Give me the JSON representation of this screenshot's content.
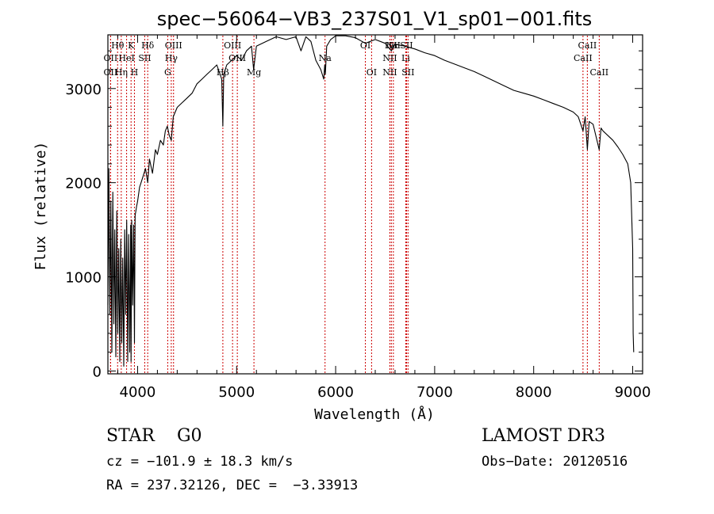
{
  "chart_data": {
    "type": "line",
    "title": "spec−56064−VB3_237S01_V1_sp01−001.fits",
    "xlabel": "Wavelength (Å)",
    "ylabel": "Flux (relative)",
    "xlim": [
      3700,
      9100
    ],
    "ylim": [
      -30,
      3570
    ],
    "xticks": [
      4000,
      5000,
      6000,
      7000,
      8000,
      9000
    ],
    "yticks": [
      0,
      1000,
      2000,
      3000
    ],
    "grid": false,
    "series": [
      {
        "name": "flux",
        "x": [
          3700,
          3710,
          3720,
          3730,
          3740,
          3750,
          3760,
          3770,
          3780,
          3790,
          3800,
          3810,
          3820,
          3830,
          3840,
          3850,
          3860,
          3870,
          3880,
          3890,
          3900,
          3910,
          3920,
          3930,
          3934,
          3940,
          3950,
          3960,
          3968,
          3975,
          3990,
          4000,
          4020,
          4050,
          4080,
          4102,
          4120,
          4150,
          4180,
          4200,
          4230,
          4260,
          4280,
          4300,
          4320,
          4340,
          4360,
          4400,
          4450,
          4500,
          4550,
          4600,
          4650,
          4700,
          4750,
          4800,
          4850,
          4861,
          4870,
          4900,
          4950,
          5000,
          5050,
          5100,
          5150,
          5172,
          5183,
          5200,
          5300,
          5400,
          5500,
          5600,
          5650,
          5700,
          5750,
          5800,
          5850,
          5880,
          5890,
          5896,
          5910,
          5950,
          6000,
          6100,
          6200,
          6300,
          6400,
          6500,
          6563,
          6600,
          6700,
          6800,
          6900,
          7000,
          7100,
          7200,
          7300,
          7400,
          7500,
          7600,
          7700,
          7800,
          7900,
          8000,
          8100,
          8200,
          8300,
          8400,
          8450,
          8498,
          8520,
          8542,
          8560,
          8600,
          8662,
          8680,
          8700,
          8750,
          8800,
          8850,
          8900,
          8950,
          8980,
          9000,
          9005,
          9010
        ],
        "values": [
          700,
          2150,
          600,
          1800,
          200,
          1900,
          500,
          1500,
          150,
          1700,
          400,
          1300,
          100,
          1400,
          300,
          1200,
          50,
          1500,
          600,
          1600,
          100,
          1450,
          200,
          1550,
          100,
          1600,
          700,
          1550,
          300,
          1650,
          1750,
          1800,
          1950,
          2050,
          2150,
          2000,
          2250,
          2100,
          2350,
          2300,
          2450,
          2400,
          2550,
          2600,
          2500,
          2450,
          2700,
          2800,
          2850,
          2900,
          2950,
          3050,
          3100,
          3150,
          3200,
          3250,
          3100,
          2600,
          3150,
          3250,
          3300,
          3350,
          3300,
          3400,
          3450,
          3200,
          3300,
          3450,
          3500,
          3550,
          3520,
          3550,
          3400,
          3550,
          3500,
          3300,
          3200,
          3100,
          3250,
          3150,
          3450,
          3520,
          3560,
          3560,
          3540,
          3480,
          3520,
          3480,
          3400,
          3470,
          3450,
          3420,
          3380,
          3350,
          3300,
          3260,
          3220,
          3180,
          3130,
          3080,
          3030,
          2980,
          2950,
          2920,
          2880,
          2840,
          2800,
          2750,
          2700,
          2550,
          2700,
          2350,
          2650,
          2620,
          2350,
          2580,
          2550,
          2500,
          2450,
          2380,
          2300,
          2200,
          2000,
          1300,
          400,
          200
        ]
      }
    ],
    "lines": [
      {
        "label": "Hθ",
        "x": 3798,
        "row": 1
      },
      {
        "label": "OII",
        "x": 3727,
        "row": 2
      },
      {
        "label": "OII",
        "x": 3727,
        "row": 3
      },
      {
        "label": "Hη",
        "x": 3835,
        "row": 3
      },
      {
        "label": "HeI",
        "x": 3889,
        "row": 2
      },
      {
        "label": "K",
        "x": 3934,
        "row": 1
      },
      {
        "label": "H",
        "x": 3968,
        "row": 3
      },
      {
        "label": "SII",
        "x": 4072,
        "row": 2
      },
      {
        "label": "Hδ",
        "x": 4102,
        "row": 1
      },
      {
        "label": "OIII",
        "x": 4363,
        "row": 1
      },
      {
        "label": "Hγ",
        "x": 4340,
        "row": 2
      },
      {
        "label": "G",
        "x": 4304,
        "row": 3
      },
      {
        "label": "Hβ",
        "x": 4861,
        "row": 3
      },
      {
        "label": "OIII",
        "x": 4959,
        "row": 1
      },
      {
        "label": "OIII",
        "x": 5007,
        "row": 2
      },
      {
        "label": "Mg",
        "x": 5175,
        "row": 3
      },
      {
        "label": "Na",
        "x": 5893,
        "row": 2
      },
      {
        "label": "OI",
        "x": 6300,
        "row": 1
      },
      {
        "label": "OI",
        "x": 6363,
        "row": 3
      },
      {
        "label": "NII",
        "x": 6548,
        "row": 2
      },
      {
        "label": "NII",
        "x": 6548,
        "row": 3
      },
      {
        "label": "Hα",
        "x": 6563,
        "row": 1
      },
      {
        "label": "NII",
        "x": 6583,
        "row": 1
      },
      {
        "label": "Li",
        "x": 6708,
        "row": 2
      },
      {
        "label": "SII",
        "x": 6716,
        "row": 1
      },
      {
        "label": "SII",
        "x": 6731,
        "row": 3
      },
      {
        "label": "CaII",
        "x": 8498,
        "row": 2
      },
      {
        "label": "CaII",
        "x": 8542,
        "row": 1
      },
      {
        "label": "CaII",
        "x": 8662,
        "row": 3
      }
    ],
    "line_color": "#cc0000",
    "text_color": "#000000"
  },
  "info": {
    "object": "STAR    G0",
    "survey": "LAMOST DR3",
    "cz": "cz = −101.9 ± 18.3 km/s",
    "obs_date": "Obs−Date: 20120516",
    "radec": "RA = 237.32126, DEC =  −3.33913"
  }
}
